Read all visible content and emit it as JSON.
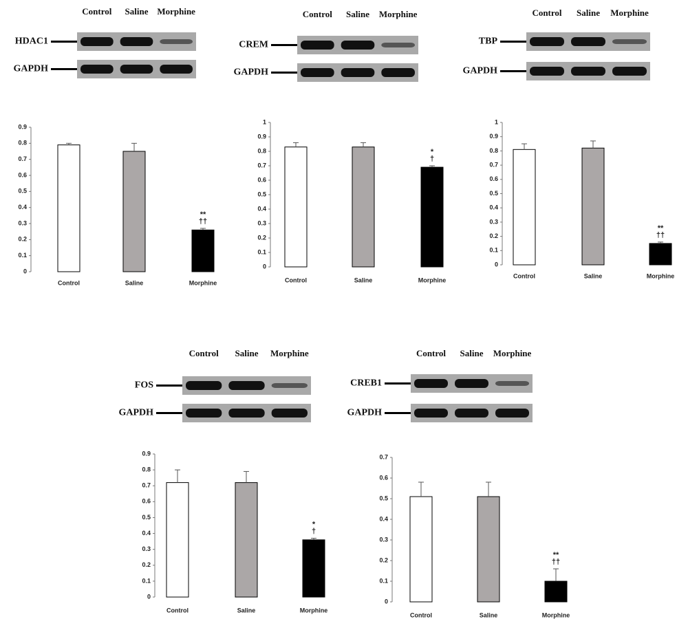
{
  "blots": [
    {
      "rows": [
        "HDAC1",
        "GAPDH"
      ],
      "lanes": [
        "Control",
        "Saline",
        "Morphine"
      ]
    },
    {
      "rows": [
        "CREM",
        "GAPDH"
      ],
      "lanes": [
        "Control",
        "Saline",
        "Morphine"
      ]
    },
    {
      "rows": [
        "TBP",
        "GAPDH"
      ],
      "lanes": [
        "Control",
        "Saline",
        "Morphine"
      ]
    },
    {
      "rows": [
        "FOS",
        "GAPDH"
      ],
      "lanes": [
        "Control",
        "Saline",
        "Morphine"
      ]
    },
    {
      "rows": [
        "CREB1",
        "GAPDH"
      ],
      "lanes": [
        "Control",
        "Saline",
        "Morphine"
      ]
    }
  ],
  "chart_data": [
    {
      "type": "bar",
      "categories": [
        "Control",
        "Saline",
        "Morphine"
      ],
      "values": [
        0.79,
        0.75,
        0.26
      ],
      "errors": [
        0.01,
        0.05,
        0.01
      ],
      "colors": [
        "#ffffff",
        "#aba7a7",
        "#000000"
      ],
      "annotations": [
        "**",
        "††"
      ],
      "ylim": [
        0,
        0.9
      ],
      "yticks": [
        0,
        0.1,
        0.2,
        0.3,
        0.4,
        0.5,
        0.6,
        0.7,
        0.8,
        0.9
      ]
    },
    {
      "type": "bar",
      "categories": [
        "Control",
        "Saline",
        "Morphine"
      ],
      "values": [
        0.83,
        0.83,
        0.69
      ],
      "errors": [
        0.03,
        0.03,
        0.01
      ],
      "colors": [
        "#ffffff",
        "#aba7a7",
        "#000000"
      ],
      "annotations": [
        "*",
        "†"
      ],
      "ylim": [
        0,
        1
      ],
      "yticks": [
        0,
        0.1,
        0.2,
        0.3,
        0.4,
        0.5,
        0.6,
        0.7,
        0.8,
        0.9,
        1
      ]
    },
    {
      "type": "bar",
      "categories": [
        "Control",
        "Saline",
        "Morphine"
      ],
      "values": [
        0.81,
        0.82,
        0.15
      ],
      "errors": [
        0.04,
        0.05,
        0.01
      ],
      "colors": [
        "#ffffff",
        "#aba7a7",
        "#000000"
      ],
      "annotations": [
        "**",
        "††"
      ],
      "ylim": [
        0,
        1
      ],
      "yticks": [
        0,
        0.1,
        0.2,
        0.3,
        0.4,
        0.5,
        0.6,
        0.7,
        0.8,
        0.9,
        1
      ]
    },
    {
      "type": "bar",
      "categories": [
        "Control",
        "Saline",
        "Morphine"
      ],
      "values": [
        0.72,
        0.72,
        0.36
      ],
      "errors": [
        0.08,
        0.07,
        0.01
      ],
      "colors": [
        "#ffffff",
        "#aba7a7",
        "#000000"
      ],
      "annotations": [
        "*",
        "†"
      ],
      "ylim": [
        0,
        0.9
      ],
      "yticks": [
        0,
        0.1,
        0.2,
        0.3,
        0.4,
        0.5,
        0.6,
        0.7,
        0.8,
        0.9
      ]
    },
    {
      "type": "bar",
      "categories": [
        "Control",
        "Saline",
        "Morphine"
      ],
      "values": [
        0.51,
        0.51,
        0.1
      ],
      "errors": [
        0.07,
        0.07,
        0.06
      ],
      "colors": [
        "#ffffff",
        "#aba7a7",
        "#000000"
      ],
      "annotations": [
        "**",
        "††"
      ],
      "ylim": [
        0,
        0.7
      ],
      "yticks": [
        0,
        0.1,
        0.2,
        0.3,
        0.4,
        0.5,
        0.6,
        0.7
      ]
    }
  ]
}
